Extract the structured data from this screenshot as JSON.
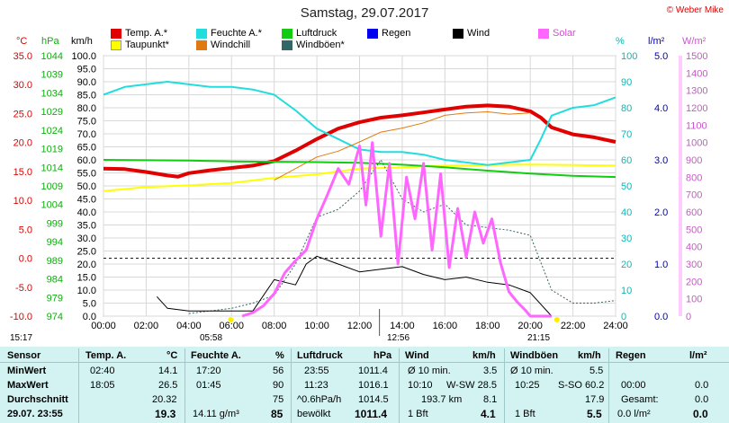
{
  "title": "Samstag, 29.07.2017",
  "copyright": "© Weber Mike",
  "axes_titles": {
    "temp": "°C",
    "hpa": "hPa",
    "kmh": "km/h",
    "pct": "%",
    "lm2": "l/m²",
    "wm2": "W/m²"
  },
  "legend": [
    {
      "label": "Temp. A.*",
      "color": "#e00000"
    },
    {
      "label": "Taupunkt*",
      "color": "#ffff00"
    },
    {
      "label": "Feuchte A.*",
      "color": "#22dddd"
    },
    {
      "label": "Windchill",
      "color": "#e07a10"
    },
    {
      "label": "Luftdruck",
      "color": "#11cc11"
    },
    {
      "label": "Windböen*",
      "color": "#336666"
    },
    {
      "label": "Regen",
      "color": "#0000ee"
    },
    {
      "label": "Wind",
      "color": "#000000"
    },
    {
      "label": "Solar",
      "color": "#ff66ff"
    }
  ],
  "sun": {
    "rise_label": "05:58",
    "set_label": "21:15",
    "left_time": "15:17",
    "now_label": "12:56"
  },
  "chart_data": {
    "type": "line",
    "title": "Samstag, 29.07.2017",
    "x_unit": "hours",
    "x_ticks": [
      "00:00",
      "02:00",
      "04:00",
      "06:00",
      "08:00",
      "10:00",
      "12:00",
      "14:00",
      "16:00",
      "18:00",
      "20:00",
      "22:00",
      "24:00"
    ],
    "axes": {
      "temp": {
        "ticks": [
          "35.0",
          "30.0",
          "25.0",
          "20.0",
          "15.0",
          "10.0",
          "5.0",
          "0.0",
          "-5.0",
          "-10.0"
        ],
        "range": [
          -10,
          35
        ],
        "color": "#e00000"
      },
      "hpa": {
        "ticks": [
          "1044",
          "1039",
          "1034",
          "1029",
          "1024",
          "1019",
          "1014",
          "1009",
          "1004",
          "999",
          "994",
          "989",
          "984",
          "979",
          "974"
        ],
        "range": [
          974,
          1044
        ],
        "color": "#11aa11"
      },
      "kmh": {
        "ticks": [
          "100.0",
          "95.0",
          "90.0",
          "85.0",
          "80.0",
          "75.0",
          "70.0",
          "65.0",
          "60.0",
          "55.0",
          "50.0",
          "45.0",
          "40.0",
          "35.0",
          "30.0",
          "25.0",
          "20.0",
          "15.0",
          "10.0",
          "5.0",
          "0.0"
        ],
        "range": [
          0,
          100
        ],
        "color": "#000000"
      },
      "pct": {
        "ticks": [
          "100",
          "90",
          "80",
          "70",
          "60",
          "50",
          "40",
          "30",
          "20",
          "10",
          "0"
        ],
        "range": [
          0,
          100
        ],
        "color": "#00bbbb"
      },
      "lm2": {
        "ticks": [
          "5.0",
          "4.0",
          "3.0",
          "2.0",
          "1.0",
          "0.0"
        ],
        "range": [
          0,
          5
        ],
        "color": "#0000cc"
      },
      "wm2": {
        "ticks": [
          "1500",
          "1400",
          "1300",
          "1200",
          "1100",
          "1000",
          "900",
          "800",
          "700",
          "600",
          "500",
          "400",
          "300",
          "200",
          "100",
          "0"
        ],
        "range": [
          0,
          1500
        ],
        "color": "#cc55cc"
      }
    },
    "grid": true,
    "series": [
      {
        "name": "Temp. A.*",
        "axis": "temp",
        "color": "#e00000",
        "width": 4,
        "x": [
          0,
          1,
          2,
          3,
          3.5,
          4,
          5,
          6,
          7,
          8,
          9,
          10,
          11,
          12,
          13,
          14,
          15,
          16,
          17,
          18,
          19,
          20,
          20.5,
          21,
          22,
          23,
          24
        ],
        "y": [
          15.5,
          15.4,
          14.9,
          14.3,
          14.1,
          14.7,
          15.2,
          15.6,
          16,
          16.8,
          18.6,
          20.6,
          22.4,
          23.5,
          24.3,
          24.7,
          25.2,
          25.7,
          26.2,
          26.4,
          26.2,
          25.4,
          24.3,
          22.6,
          21.4,
          20.9,
          20.1
        ]
      },
      {
        "name": "Taupunkt*",
        "axis": "temp",
        "color": "#ffff00",
        "width": 2,
        "x": [
          0,
          2,
          4,
          6,
          8,
          10,
          12,
          14,
          16,
          18,
          20,
          22,
          24
        ],
        "y": [
          11.6,
          12.3,
          12.6,
          13,
          13.9,
          14.5,
          15.5,
          15.7,
          16,
          16.1,
          16.2,
          16.1,
          16
        ]
      },
      {
        "name": "Feuchte A.*",
        "axis": "pct",
        "color": "#22dddd",
        "width": 2,
        "x": [
          0,
          1,
          2,
          3,
          4,
          5,
          6,
          7,
          8,
          9,
          10,
          11,
          12,
          13,
          14,
          15,
          16,
          17,
          18,
          19,
          20,
          20.5,
          21,
          22,
          23,
          24
        ],
        "y": [
          85,
          88,
          89,
          90,
          89,
          88,
          88,
          87,
          85,
          79,
          72,
          68,
          64,
          63,
          63,
          62,
          60,
          59,
          58,
          59,
          60,
          68,
          77,
          80,
          81,
          84
        ]
      },
      {
        "name": "Windchill",
        "axis": "temp",
        "color": "#e07a10",
        "width": 1,
        "x": [
          8,
          9,
          10,
          11,
          12,
          13,
          14,
          15,
          16,
          17,
          18,
          19,
          20
        ],
        "y": [
          13.5,
          15.5,
          17.5,
          18.5,
          20.1,
          21.8,
          22.5,
          23.4,
          24.7,
          25.1,
          25.3,
          24.9,
          25.1
        ]
      },
      {
        "name": "Luftdruck",
        "axis": "hpa",
        "color": "#11cc11",
        "width": 2,
        "x": [
          0,
          2,
          4,
          6,
          8,
          10,
          12,
          14,
          16,
          18,
          20,
          22,
          24
        ],
        "y": [
          1016,
          1015.9,
          1015.8,
          1015.6,
          1015.5,
          1015.4,
          1015.2,
          1014.7,
          1014,
          1013.1,
          1012.3,
          1011.7,
          1011.4
        ]
      },
      {
        "name": "Windböen*",
        "axis": "kmh",
        "color": "#336666",
        "width": 1,
        "dash": true,
        "x": [
          4,
          5,
          6,
          7,
          8,
          9,
          10,
          11,
          12,
          13,
          14,
          15,
          16,
          17,
          18,
          19,
          20,
          21,
          22,
          23,
          24
        ],
        "y": [
          1,
          2,
          3,
          5,
          8,
          20,
          38,
          41,
          48,
          60,
          45,
          40,
          43,
          35,
          34,
          33,
          31,
          10,
          5,
          5,
          6
        ]
      },
      {
        "name": "Wind",
        "axis": "kmh",
        "color": "#000000",
        "width": 1,
        "x": [
          2.5,
          3,
          4,
          5,
          6,
          7,
          8,
          9,
          9.5,
          10,
          11,
          12,
          13,
          14,
          15,
          16,
          17,
          18,
          19,
          20,
          21
        ],
        "y": [
          7.5,
          3,
          2,
          2,
          2,
          2,
          14,
          12,
          20,
          23,
          20,
          17,
          18,
          19,
          16,
          14,
          15,
          13,
          12,
          9,
          0
        ]
      },
      {
        "name": "Solar",
        "axis": "wm2",
        "color": "#ff66ff",
        "width": 3,
        "x": [
          6.5,
          7,
          7.5,
          8,
          8.5,
          9,
          9.5,
          10,
          10.5,
          11,
          11.5,
          12,
          12.3,
          12.6,
          13,
          13.4,
          13.8,
          14.2,
          14.6,
          15,
          15.4,
          15.8,
          16.2,
          16.6,
          17,
          17.4,
          17.8,
          18.2,
          18.6,
          19,
          19.4,
          19.8,
          20,
          20.5,
          21
        ],
        "y": [
          0,
          20,
          60,
          130,
          250,
          320,
          380,
          560,
          700,
          850,
          760,
          980,
          640,
          1000,
          460,
          880,
          300,
          800,
          560,
          880,
          380,
          820,
          280,
          620,
          340,
          600,
          420,
          560,
          310,
          140,
          80,
          30,
          0,
          0,
          0
        ]
      }
    ]
  },
  "table": {
    "headers": {
      "sensor": "Sensor",
      "temp": "Temp. A.",
      "temp_unit": "°C",
      "hum": "Feuchte A.",
      "hum_unit": "%",
      "press": "Luftdruck",
      "press_unit": "hPa",
      "wind": "Wind",
      "wind_unit": "km/h",
      "gust": "Windböen",
      "gust_unit": "km/h",
      "rain": "Regen",
      "rain_unit": "l/m²"
    },
    "row_labels": [
      "MinWert",
      "MaxWert",
      "Durchschnitt",
      "29.07. 23:55"
    ],
    "temp": {
      "min_time": "02:40",
      "min": "14.1",
      "max_time": "18:05",
      "max": "26.5",
      "avg": "20.32",
      "cur": "19.3"
    },
    "hum": {
      "min_time": "17:20",
      "min": "56",
      "max_time": "01:45",
      "max": "90",
      "avg": "75",
      "cur_extra": "14.11 g/m³",
      "cur": "85"
    },
    "press": {
      "min_time": "23:55",
      "min": "1011.4",
      "max_time": "11:23",
      "max": "1016.1",
      "trend": "^0.6hPa/h",
      "avg": "1014.5",
      "cur_extra": "bewölkt",
      "cur": "1011.4"
    },
    "wind": {
      "min_label": "Ø 10 min.",
      "min": "3.5",
      "max_time": "10:10",
      "max_dir": "W-SW 28.5",
      "avg_dir": "193.7 km",
      "avg": "8.1",
      "cur_bft": "1 Bft",
      "cur": "4.1"
    },
    "gust": {
      "min_label": "Ø 10 min.",
      "min": "5.5",
      "max_time": "10:25",
      "max_dir": "S-SO 60.2",
      "avg": "17.9",
      "cur_bft": "1 Bft",
      "cur": "5.5"
    },
    "rain": {
      "max_time": "00:00",
      "max": "0.0",
      "avg_label": "Gesamt:",
      "avg": "0.0",
      "cur_extra": "0.0 l/m²",
      "cur": "0.0"
    }
  }
}
